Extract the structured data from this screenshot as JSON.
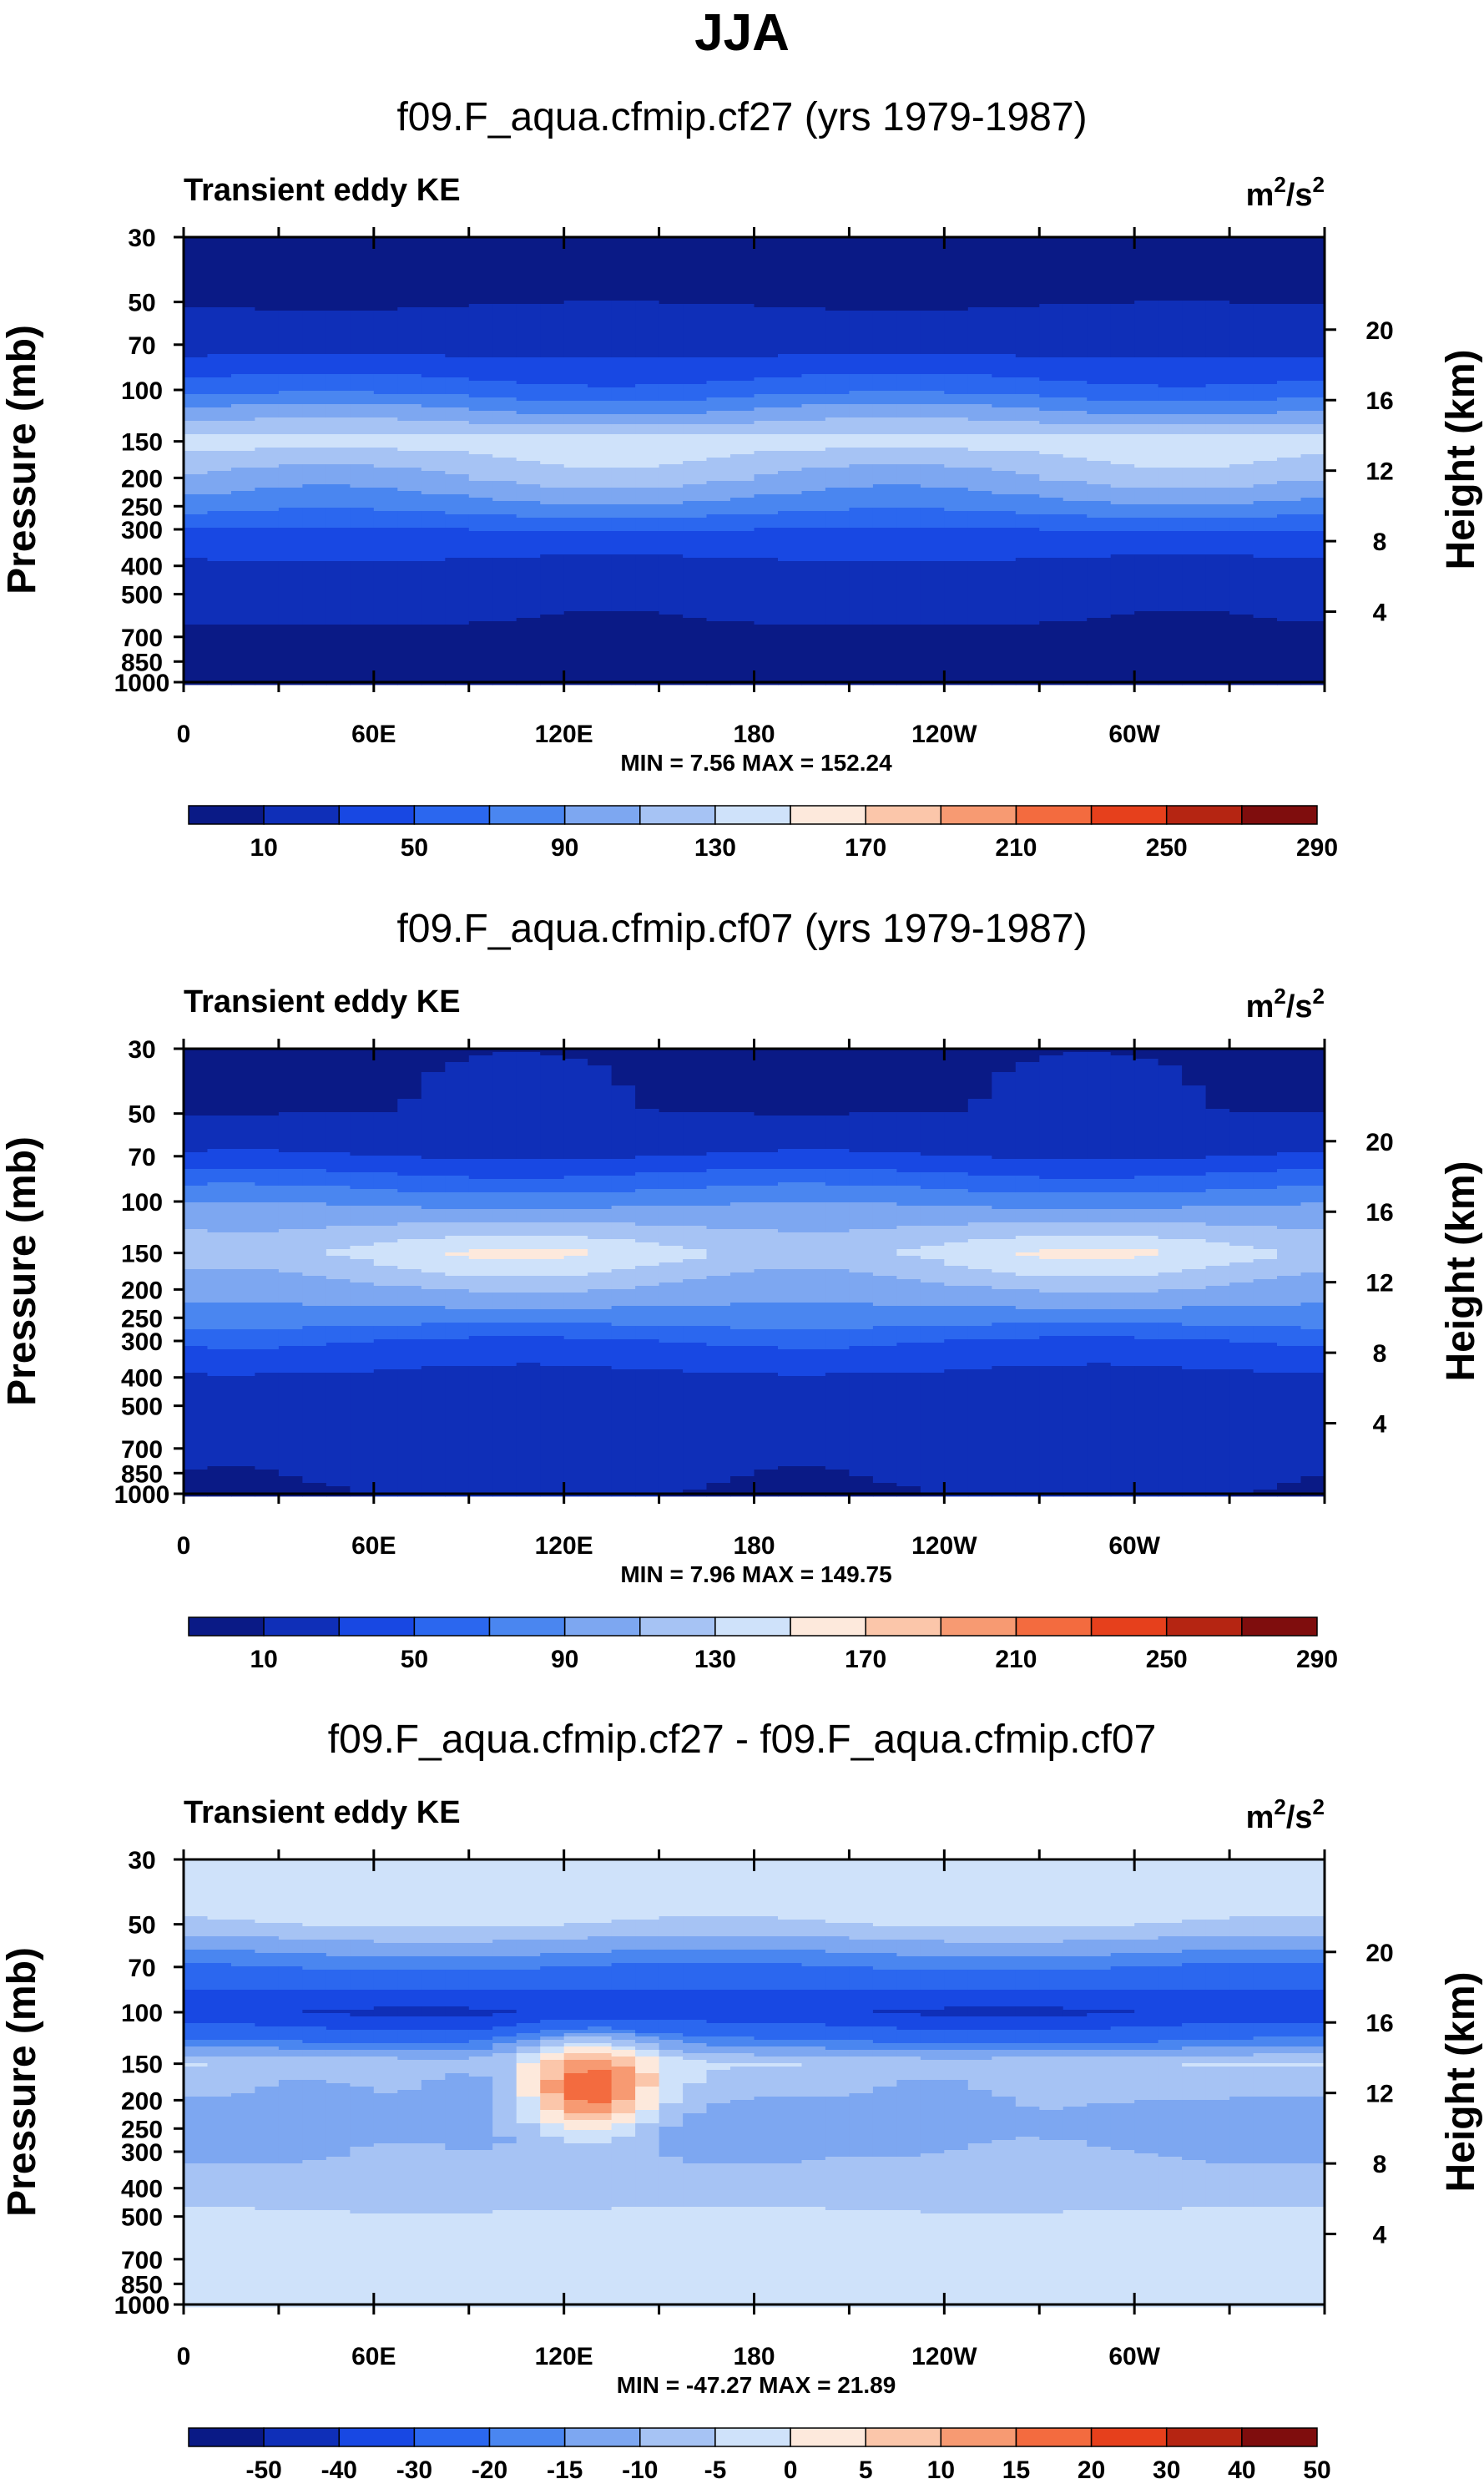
{
  "title": "JJA",
  "panel_common": {
    "left_label": "Transient eddy KE",
    "units_base": "m",
    "units_exp": "2",
    "units_sep": "/s",
    "ylabel_left": "Pressure (mb)",
    "ylabel_right": "Height (km)"
  },
  "colors": {
    "abs_levels": [
      "#0a1a86",
      "#0f2fb8",
      "#1848e3",
      "#2b67ef",
      "#4a86f0",
      "#7da7f1",
      "#a6c3f4",
      "#cfe2fa",
      "#fde9dc",
      "#fbc6aa",
      "#f79a72",
      "#f36b3f",
      "#e6401c",
      "#b52512",
      "#7f0d0d"
    ],
    "diff_levels": [
      "#0a1a86",
      "#0f2fb8",
      "#1848e3",
      "#2b67ef",
      "#4a86f0",
      "#7da7f1",
      "#a6c3f4",
      "#cfe2fa",
      "#fde9dc",
      "#fbc6aa",
      "#f79a72",
      "#f36b3f",
      "#e6401c",
      "#b52512",
      "#7f0d0d"
    ]
  },
  "chart_data": [
    {
      "type": "heatmap",
      "title": "f09.F_aqua.cfmip.cf27 (yrs 1979-1987)",
      "stats": "MIN =   7.56  MAX = 152.24",
      "x_ticks": [
        "0",
        "60E",
        "120E",
        "180",
        "120W",
        "60W"
      ],
      "y_ticks_left": [
        "30",
        "50",
        "70",
        "100",
        "150",
        "200",
        "250",
        "300",
        "400",
        "500",
        "700",
        "850",
        "1000"
      ],
      "y_ticks_right": [
        "20",
        "16",
        "12",
        "8",
        "4"
      ],
      "colorbar_labels": [
        "10",
        "50",
        "90",
        "130",
        "170",
        "210",
        "250",
        "290"
      ],
      "profile_pressure": [
        30,
        50,
        70,
        100,
        150,
        200,
        250,
        300,
        400,
        500,
        700,
        850,
        1000
      ],
      "profile_value": [
        8,
        9,
        20,
        60,
        140,
        110,
        80,
        50,
        25,
        12,
        9,
        8,
        8
      ]
    },
    {
      "type": "heatmap",
      "title": "f09.F_aqua.cfmip.cf07 (yrs 1979-1987)",
      "stats": "MIN =   7.96  MAX = 149.75",
      "x_ticks": [
        "0",
        "60E",
        "120E",
        "180",
        "120W",
        "60W"
      ],
      "y_ticks_left": [
        "30",
        "50",
        "70",
        "100",
        "150",
        "200",
        "250",
        "300",
        "400",
        "500",
        "700",
        "850",
        "1000"
      ],
      "y_ticks_right": [
        "20",
        "16",
        "12",
        "8",
        "4"
      ],
      "colorbar_labels": [
        "10",
        "50",
        "90",
        "130",
        "170",
        "210",
        "250",
        "290"
      ],
      "profile_pressure": [
        30,
        50,
        70,
        100,
        150,
        200,
        250,
        300,
        400,
        500,
        700,
        850,
        1000
      ],
      "profile_value": [
        9,
        10,
        30,
        85,
        140,
        105,
        80,
        50,
        25,
        15,
        12,
        11,
        10
      ]
    },
    {
      "type": "heatmap",
      "title": "f09.F_aqua.cfmip.cf27 - f09.F_aqua.cfmip.cf07",
      "stats": "MIN = -47.27  MAX = 21.89",
      "x_ticks": [
        "0",
        "60E",
        "120E",
        "180",
        "120W",
        "60W"
      ],
      "y_ticks_left": [
        "30",
        "50",
        "70",
        "100",
        "150",
        "200",
        "250",
        "300",
        "400",
        "500",
        "700",
        "850",
        "1000"
      ],
      "y_ticks_right": [
        "20",
        "16",
        "12",
        "8",
        "4"
      ],
      "colorbar_labels": [
        "-50",
        "-40",
        "-30",
        "-20",
        "-15",
        "-10",
        "-5",
        "0",
        "5",
        "10",
        "15",
        "20",
        "30",
        "40",
        "50"
      ],
      "profile_pressure": [
        30,
        50,
        70,
        100,
        150,
        200,
        250,
        300,
        400,
        500,
        700,
        850,
        1000
      ],
      "profile_value": [
        -2,
        -5,
        -20,
        -40,
        -5,
        -10,
        -12,
        -10,
        -8,
        -4,
        -2,
        -1,
        -1
      ],
      "features": [
        {
          "label": "positive-max",
          "lon": 127,
          "p": 180,
          "value": 20
        },
        {
          "label": "negative-patch",
          "lon": 100,
          "p": 200,
          "value": -15
        },
        {
          "label": "negative-patch",
          "lon": 235,
          "p": 220,
          "value": -12
        },
        {
          "label": "negative-patch",
          "lon": 40,
          "p": 220,
          "value": -12
        }
      ]
    }
  ]
}
